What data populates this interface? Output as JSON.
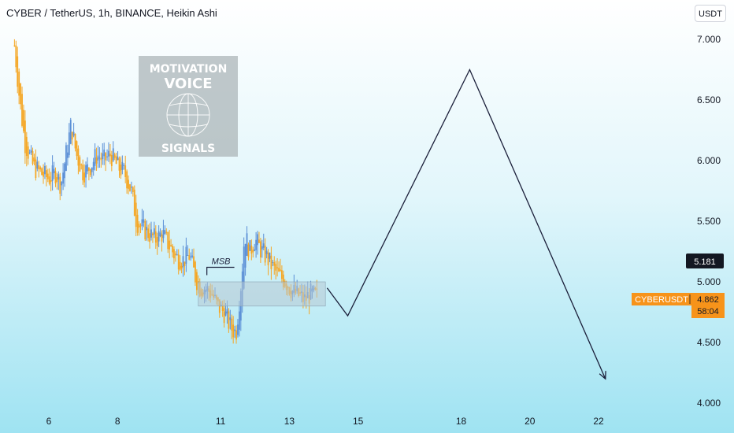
{
  "header": {
    "title": "CYBER / TetherUS, 1h, BINANCE, Heikin Ashi",
    "currency_label": "USDT"
  },
  "watermark": {
    "line1": "MOTIVATION",
    "line2": "VOICE",
    "line3": "SIGNALS",
    "icon": "globe-icon"
  },
  "annotations": {
    "msb_label": "MSB"
  },
  "price_tags": {
    "crosshair_price": "5.181",
    "symbol": "CYBERUSDT",
    "last_price": "4.862",
    "countdown": "58:04"
  },
  "colors": {
    "up_candle": "#5b8fd6",
    "down_candle": "#f5a623",
    "symbol_tag": "#f7931a",
    "projection_line": "#1b1f3a",
    "zone_fill": "#b7c9d4"
  },
  "chart_data": {
    "type": "candlestick",
    "style": "Heikin Ashi",
    "symbol": "CYBERUSDT",
    "interval": "1h",
    "exchange": "BINANCE",
    "y_axis": {
      "range": [
        3.88,
        7.14
      ],
      "ticks": [
        "7.000",
        "6.500",
        "6.000",
        "5.500",
        "5.000",
        "4.500",
        "4.000"
      ],
      "tick_values": [
        7.0,
        6.5,
        6.0,
        5.5,
        5.0,
        4.5,
        4.0
      ]
    },
    "x_axis": {
      "ticks": [
        "6",
        "8",
        "11",
        "13",
        "15",
        "18",
        "20",
        "22"
      ],
      "tick_values": [
        6,
        8,
        11,
        13,
        15,
        18,
        20,
        22
      ],
      "range": [
        4.95,
        23.6
      ]
    },
    "grid": false,
    "candle_path": [
      [
        5.0,
        6.95
      ],
      [
        5.15,
        6.5
      ],
      [
        5.3,
        6.15
      ],
      [
        5.55,
        5.95
      ],
      [
        5.75,
        5.9
      ],
      [
        6.0,
        5.85
      ],
      [
        6.2,
        5.9
      ],
      [
        6.35,
        5.8
      ],
      [
        6.5,
        6.05
      ],
      [
        6.65,
        6.3
      ],
      [
        6.8,
        6.05
      ],
      [
        7.0,
        5.9
      ],
      [
        7.2,
        5.95
      ],
      [
        7.4,
        6.05
      ],
      [
        7.6,
        6.0
      ],
      [
        7.8,
        6.05
      ],
      [
        8.0,
        5.95
      ],
      [
        8.2,
        5.9
      ],
      [
        8.4,
        5.75
      ],
      [
        8.55,
        5.5
      ],
      [
        8.7,
        5.45
      ],
      [
        8.9,
        5.4
      ],
      [
        9.1,
        5.35
      ],
      [
        9.3,
        5.4
      ],
      [
        9.5,
        5.3
      ],
      [
        9.7,
        5.2
      ],
      [
        9.9,
        5.18
      ],
      [
        10.1,
        5.22
      ],
      [
        10.25,
        5.05
      ],
      [
        10.4,
        4.95
      ],
      [
        10.55,
        4.95
      ],
      [
        10.75,
        4.9
      ],
      [
        10.9,
        4.8
      ],
      [
        11.1,
        4.75
      ],
      [
        11.3,
        4.62
      ],
      [
        11.45,
        4.58
      ],
      [
        11.6,
        5.0
      ],
      [
        11.7,
        5.4
      ],
      [
        11.85,
        5.25
      ],
      [
        12.0,
        5.35
      ],
      [
        12.2,
        5.25
      ],
      [
        12.35,
        5.2
      ],
      [
        12.55,
        5.1
      ],
      [
        12.7,
        5.05
      ],
      [
        12.9,
        5.0
      ],
      [
        13.1,
        4.92
      ],
      [
        13.3,
        4.88
      ],
      [
        13.45,
        4.85
      ],
      [
        13.6,
        4.9
      ],
      [
        13.8,
        4.88
      ]
    ],
    "demand_zone": {
      "x": [
        10.35,
        14.05
      ],
      "y": [
        4.8,
        5.0
      ]
    },
    "msb_level": {
      "x": [
        10.6,
        11.4
      ],
      "y": 5.12
    },
    "projection": {
      "x": [
        14.1,
        14.7,
        18.25,
        22.2
      ],
      "y": [
        4.95,
        4.72,
        6.75,
        4.2
      ]
    }
  }
}
